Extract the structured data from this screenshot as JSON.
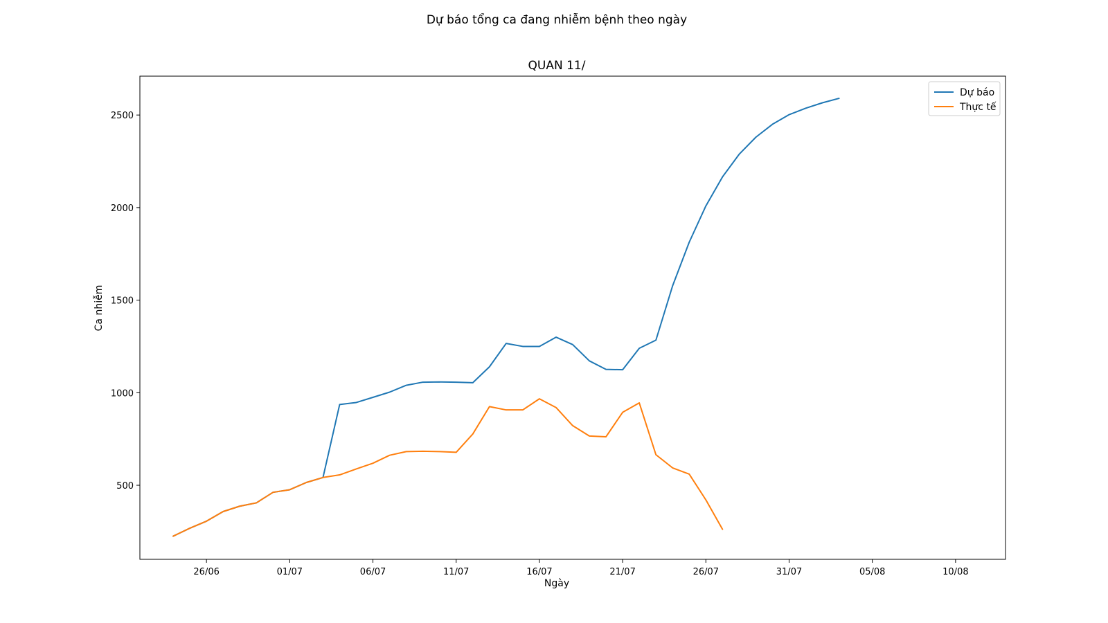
{
  "chart_data": {
    "type": "line",
    "suptitle": "Dự báo tổng ca đang nhiễm bệnh theo ngày",
    "title": "QUAN 11/",
    "xlabel": "Ngày",
    "ylabel": "Ca nhiễm",
    "x_start": "2021-06-24",
    "xlim": [
      "2021-06-22",
      "2021-08-13"
    ],
    "ylim": [
      100,
      2710
    ],
    "x_ticks": [
      {
        "date": "2021-06-26",
        "label": "26/06"
      },
      {
        "date": "2021-07-01",
        "label": "01/07"
      },
      {
        "date": "2021-07-06",
        "label": "06/07"
      },
      {
        "date": "2021-07-11",
        "label": "11/07"
      },
      {
        "date": "2021-07-16",
        "label": "16/07"
      },
      {
        "date": "2021-07-21",
        "label": "21/07"
      },
      {
        "date": "2021-07-26",
        "label": "26/07"
      },
      {
        "date": "2021-07-31",
        "label": "31/07"
      },
      {
        "date": "2021-08-05",
        "label": "05/08"
      },
      {
        "date": "2021-08-10",
        "label": "10/08"
      }
    ],
    "y_ticks": [
      {
        "value": 500,
        "label": "500"
      },
      {
        "value": 1000,
        "label": "1000"
      },
      {
        "value": 1500,
        "label": "1500"
      },
      {
        "value": 2000,
        "label": "2000"
      },
      {
        "value": 2500,
        "label": "2500"
      }
    ],
    "legend_position": "top-right",
    "grid": false,
    "series": [
      {
        "name": "Dự báo",
        "color": "#1f77b4",
        "values": [
          225,
          268,
          306,
          358,
          387,
          405,
          462,
          476,
          515,
          542,
          936,
          947,
          975,
          1003,
          1040,
          1057,
          1058,
          1057,
          1054,
          1140,
          1266,
          1250,
          1250,
          1300,
          1260,
          1172,
          1126,
          1124,
          1240,
          1284,
          1577,
          1813,
          2009,
          2166,
          2288,
          2380,
          2450,
          2502,
          2537,
          2566,
          2590
        ]
      },
      {
        "name": "Thực tế",
        "color": "#ff7f0e",
        "values": [
          225,
          268,
          306,
          358,
          387,
          405,
          462,
          476,
          515,
          542,
          556,
          588,
          619,
          662,
          682,
          684,
          682,
          678,
          777,
          925,
          907,
          907,
          967,
          920,
          822,
          766,
          762,
          894,
          945,
          665,
          594,
          560,
          421,
          262
        ]
      }
    ]
  }
}
